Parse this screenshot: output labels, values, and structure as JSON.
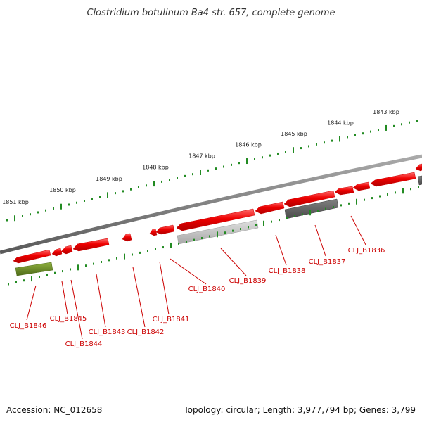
{
  "title": "Clostridium botulinum Ba4 str. 657, complete genome",
  "footer": {
    "accession": "Accession: NC_012658",
    "topology": "Topology: circular; Length: 3,977,794 bp; Genes: 3,799"
  },
  "colors": {
    "gene_forward": "#ee0000",
    "gene_pseudo_light": "#bbbbbb",
    "gene_pseudo_dark": "#606060",
    "gene_green": "#6b8e23",
    "label": "#cc0000",
    "ticks": "#228b22",
    "backbone": "#777777"
  },
  "scale": {
    "labels": [
      "1851 kbp",
      "1850 kbp",
      "1849 kbp",
      "1848 kbp",
      "1847 kbp",
      "1846 kbp",
      "1845 kbp",
      "1844 kbp",
      "1843 kbp"
    ]
  },
  "genes": [
    {
      "label": "CLJ_B1846"
    },
    {
      "label": "CLJ_B1845"
    },
    {
      "label": "CLJ_B1844"
    },
    {
      "label": "CLJ_B1843"
    },
    {
      "label": "CLJ_B1842"
    },
    {
      "label": "CLJ_B1841"
    },
    {
      "label": "CLJ_B1840"
    },
    {
      "label": "CLJ_B1839"
    },
    {
      "label": "CLJ_B1838"
    },
    {
      "label": "CLJ_B1837"
    },
    {
      "label": "CLJ_B1836"
    }
  ]
}
